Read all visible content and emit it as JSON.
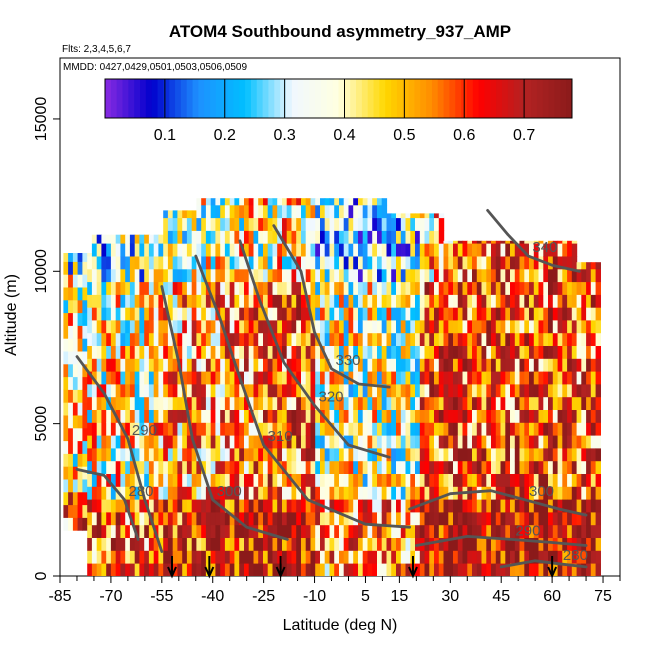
{
  "chart_data": {
    "type": "heatmap",
    "title": "ATOM4 Southbound asymmetry_937_AMP",
    "flights_note": "Flts: 2,3,4,5,6,7",
    "mmdd_note": "MMDD: 0427,0429,0501,0503,0506,0509",
    "xlabel": "Latitude (deg N)",
    "ylabel": "Altitude (m)",
    "xlim": [
      -85,
      80
    ],
    "ylim": [
      0,
      17000
    ],
    "x_ticks": [
      "-85",
      "-70",
      "-55",
      "-40",
      "-25",
      "-10",
      "5",
      "15",
      "30",
      "45",
      "60",
      "75"
    ],
    "x_tick_values": [
      -85,
      -70,
      -55,
      -40,
      -25,
      -10,
      5,
      15,
      30,
      45,
      60,
      75
    ],
    "y_ticks": [
      "0",
      "5000",
      "10000",
      "15000"
    ],
    "y_tick_values": [
      0,
      5000,
      10000,
      15000
    ],
    "colorbar": {
      "range": [
        0,
        0.78
      ],
      "ticks": [
        "0.1",
        "0.2",
        "0.3",
        "0.4",
        "0.5",
        "0.6",
        "0.7"
      ],
      "tick_values": [
        0.1,
        0.2,
        0.3,
        0.4,
        0.5,
        0.6,
        0.7
      ],
      "colors": [
        "#8a2be2",
        "#0000cd",
        "#1e90ff",
        "#00bfff",
        "#f0f8ff",
        "#ffffe0",
        "#ffd700",
        "#ff8c00",
        "#ff0000",
        "#b22222",
        "#8b1a1a"
      ]
    },
    "contours": [
      {
        "label": "340",
        "points": [
          [
            41,
            12000
          ],
          [
            47,
            11200
          ],
          [
            53,
            10500
          ],
          [
            60,
            10200
          ],
          [
            68,
            10000
          ]
        ]
      },
      {
        "label": "330",
        "points": [
          [
            -22,
            11500
          ],
          [
            -14,
            10000
          ],
          [
            -10,
            8000
          ],
          [
            -5,
            6800
          ],
          [
            3,
            6300
          ],
          [
            12,
            6200
          ]
        ]
      },
      {
        "label": "320",
        "points": [
          [
            -32,
            11000
          ],
          [
            -26,
            9000
          ],
          [
            -19,
            7000
          ],
          [
            -10,
            5600
          ],
          [
            0,
            4300
          ],
          [
            12,
            3900
          ]
        ]
      },
      {
        "label": "310",
        "points": [
          [
            -45,
            10500
          ],
          [
            -38,
            8500
          ],
          [
            -32,
            6500
          ],
          [
            -25,
            4300
          ],
          [
            -12,
            2500
          ],
          [
            5,
            1700
          ],
          [
            18,
            1600
          ]
        ]
      },
      {
        "label": "300",
        "points": [
          [
            -55,
            9500
          ],
          [
            -50,
            7000
          ],
          [
            -46,
            4500
          ],
          [
            -40,
            2500
          ],
          [
            -30,
            1600
          ],
          [
            -18,
            1200
          ]
        ]
      },
      {
        "label": "300",
        "points": [
          [
            18,
            2200
          ],
          [
            30,
            2700
          ],
          [
            42,
            2800
          ],
          [
            52,
            2500
          ],
          [
            62,
            2200
          ],
          [
            70,
            2000
          ]
        ]
      },
      {
        "label": "290",
        "points": [
          [
            -80,
            7200
          ],
          [
            -72,
            6000
          ],
          [
            -65,
            4500
          ],
          [
            -60,
            2500
          ],
          [
            -55,
            800
          ]
        ]
      },
      {
        "label": "290",
        "points": [
          [
            20,
            1000
          ],
          [
            35,
            1300
          ],
          [
            48,
            1200
          ],
          [
            60,
            1100
          ],
          [
            70,
            1000
          ]
        ]
      },
      {
        "label": "280",
        "points": [
          [
            -80,
            3500
          ],
          [
            -72,
            3300
          ],
          [
            -66,
            2500
          ],
          [
            -62,
            1200
          ]
        ]
      },
      {
        "label": "280",
        "points": [
          [
            45,
            300
          ],
          [
            55,
            500
          ],
          [
            62,
            400
          ],
          [
            70,
            300
          ]
        ]
      }
    ],
    "flight_markers_lat": [
      -52,
      -41,
      -20,
      19,
      60
    ]
  }
}
